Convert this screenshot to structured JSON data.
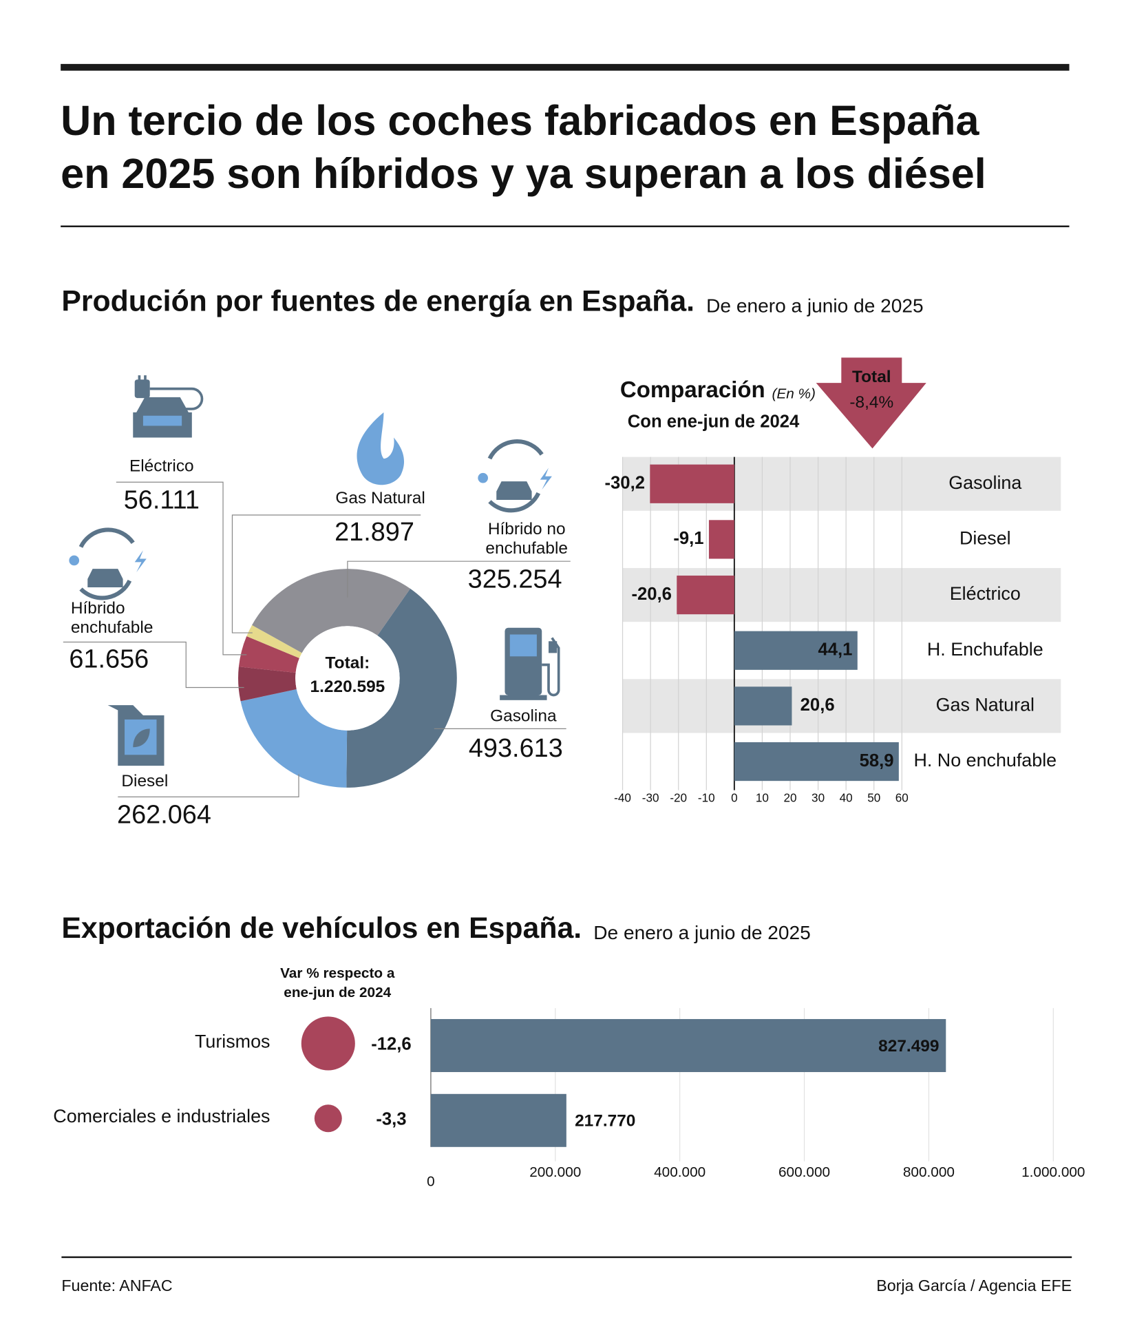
{
  "title": [
    "Un tercio de los coches fabricados en España",
    "en 2025 son híbridos y ya superan a los diésel"
  ],
  "sections": [
    {
      "title": "Produción por fuentes de energía en España.",
      "subtitle": "De enero a junio de 2025"
    },
    {
      "title": "Exportación de vehículos en España.",
      "subtitle": "De enero a junio de 2025"
    }
  ],
  "chart_data": [
    {
      "type": "donut",
      "categories": [
        "Gasolina",
        "Diesel",
        "Híbrido enchufable",
        "Eléctrico",
        "Gas Natural",
        "Híbrido no enchufable"
      ],
      "values": [
        493613,
        262064,
        61656,
        56111,
        21897,
        325254
      ],
      "value_labels": [
        "493.613",
        "262.064",
        "61.656",
        "56.111",
        "21.897",
        "325.254"
      ],
      "colors": [
        "#5b7489",
        "#70a5da",
        "#8c3a4f",
        "#a9455b",
        "#e6da8c",
        "#8f8f95"
      ],
      "total_title": "Total:",
      "total": {
        "value": 1220595,
        "label": "1.220.595"
      }
    },
    {
      "type": "bar",
      "orientation": "horizontal",
      "title": "Comparación",
      "unit_label": "(En %)",
      "subtitle": "Con ene-jun de 2024",
      "total_title": "Total",
      "total": {
        "value": -8.4,
        "label": "-8,4%"
      },
      "categories": [
        "Gasolina",
        "Diesel",
        "Eléctrico",
        "H. Enchufable",
        "Gas Natural",
        "H. No enchufable"
      ],
      "values": [
        -30.2,
        -9.1,
        -20.6,
        44.1,
        20.6,
        58.9
      ],
      "value_labels": [
        "-30,2",
        "-9,1",
        "-20,6",
        "44,1",
        "20,6",
        "58,9"
      ],
      "negative_color": "#a9455b",
      "positive_color": "#5b7489",
      "xlim": [
        -40,
        60
      ],
      "xticks": [
        -40,
        -30,
        -20,
        -10,
        0,
        10,
        20,
        30,
        40,
        50,
        60
      ],
      "grid": true
    },
    {
      "type": "bar",
      "orientation": "horizontal",
      "categories": [
        "Turismos",
        "Comerciales e industriales"
      ],
      "values": [
        827499,
        217770
      ],
      "value_labels": [
        "827.499",
        "217.770"
      ],
      "color": "#5b7489",
      "change_title": "Var % respecto a ene-jun de 2024",
      "change": [
        -12.6,
        -3.3
      ],
      "change_labels": [
        "-12,6",
        "-3,3"
      ],
      "change_color": "#a9455b",
      "xlim": [
        0,
        1000000
      ],
      "xticks": [
        0,
        {
          "value": 200000,
          "label": "200.000"
        },
        {
          "value": 400000,
          "label": "400.000"
        },
        {
          "value": 600000,
          "label": "600.000"
        },
        {
          "value": 800000,
          "label": "800.000"
        },
        {
          "value": 1000000,
          "label": "1.000.000"
        }
      ],
      "grid": true
    }
  ],
  "source": "Fuente: ANFAC",
  "credit": "Borja García / Agencia EFE"
}
